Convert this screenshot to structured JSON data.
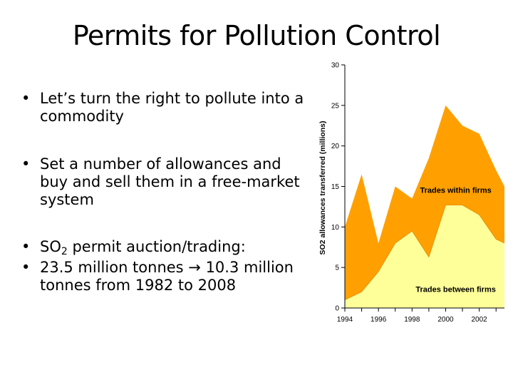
{
  "slide": {
    "title": "Permits for Pollution Control"
  },
  "bullets": [
    {
      "text": "Let’s turn the right to pollute into a commodity"
    },
    {
      "text": "Set a number of allowances and buy and sell them in a free-market system"
    },
    {
      "pre": "SO",
      "sub": "2",
      "post": " permit auction/trading:"
    },
    {
      "text": "23.5 million tonnes → 10.3 million tonnes from 1982 to 2008"
    }
  ],
  "colors": {
    "within": "#FFA000",
    "between": "#FFFF99",
    "outline": "#000000"
  },
  "chart_data": {
    "type": "area",
    "ylabel": "SO2 allowances transferred (millions)",
    "ylim": [
      0,
      30
    ],
    "xlim": [
      1994,
      2003.5
    ],
    "yticks": [
      0,
      5,
      10,
      15,
      20,
      25,
      30
    ],
    "xticks": [
      1994,
      1996,
      1998,
      2000,
      2002
    ],
    "grid": false,
    "annotations": [
      {
        "text": "Trades within firms",
        "series": "within"
      },
      {
        "text": "Trades between firms",
        "series": "between"
      }
    ],
    "total": {
      "x": [
        1994,
        1995,
        1996,
        1997,
        1998,
        1999,
        2000,
        2001,
        2002,
        2003,
        2003.5
      ],
      "y": [
        10,
        16.5,
        8,
        15,
        13.5,
        18.5,
        25,
        22.5,
        21.5,
        17,
        15
      ]
    },
    "between": {
      "x": [
        1994,
        1995,
        1996,
        1997,
        1998,
        1999,
        2000,
        2001,
        2002,
        2003,
        2003.5
      ],
      "y": [
        1,
        2,
        4.5,
        8,
        9.5,
        6.3,
        12.7,
        12.7,
        11.5,
        8.5,
        8
      ]
    }
  }
}
